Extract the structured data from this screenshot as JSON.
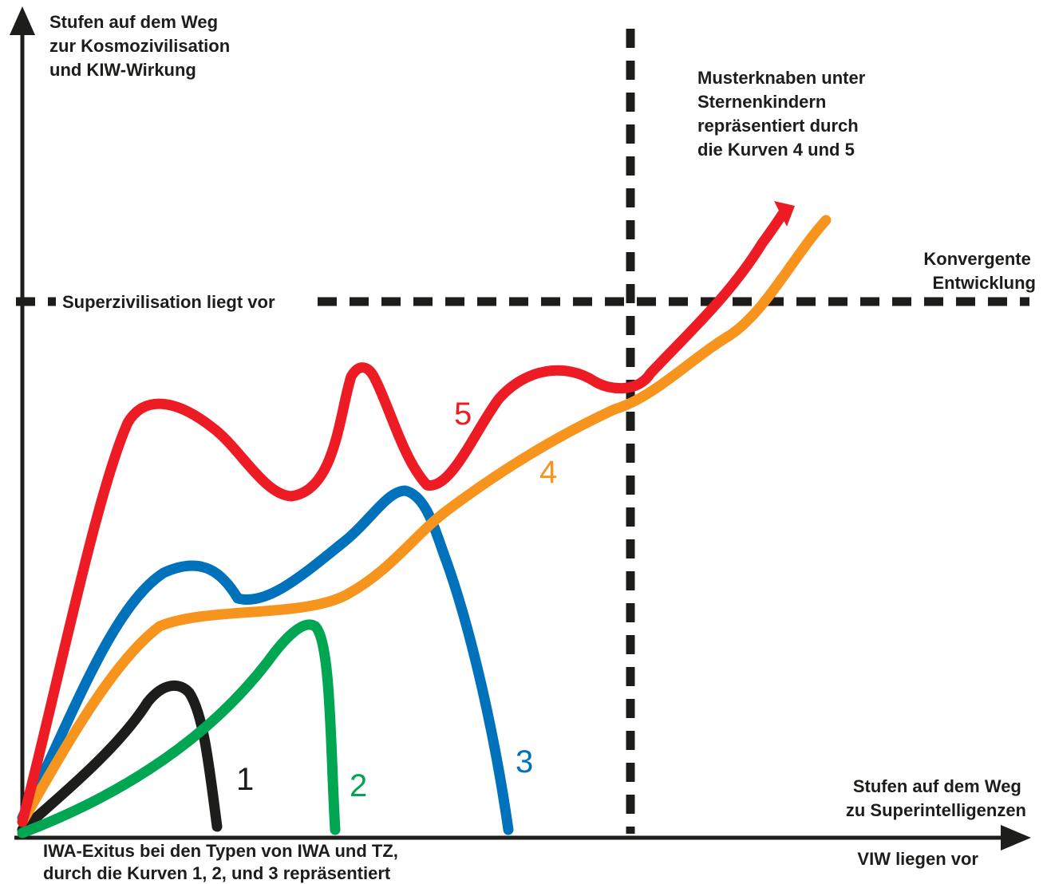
{
  "y_axis_label": [
    "Stufen auf dem Weg",
    "zur Kosmozivilisation",
    "und KIW-Wirkung"
  ],
  "x_axis_label": [
    "Stufen auf dem Weg",
    "zu Superintelligenzen"
  ],
  "x_axis_note": "VIW liegen vor",
  "horizontal_threshold_label": "Superzivilisation liegt vor",
  "convergence_label": [
    "Konvergente",
    "Entwicklung"
  ],
  "top_right_note": [
    "Musterknaben unter",
    "Sternenkindern",
    "repräsentiert durch",
    "die Kurven 4 und 5"
  ],
  "bottom_note": [
    "IWA-Exitus bei den Typen von IWA und TZ,",
    "durch die Kurven 1, 2, und 3 repräsentiert"
  ],
  "curves": [
    {
      "number": "1",
      "color": "#1d1d1b"
    },
    {
      "number": "2",
      "color": "#00a651"
    },
    {
      "number": "3",
      "color": "#0072bc"
    },
    {
      "number": "4",
      "color": "#f7941d"
    },
    {
      "number": "5",
      "color": "#ed1c24"
    }
  ],
  "colors": {
    "axis": "#1d1d1b",
    "dashed": "#1d1d1b"
  }
}
